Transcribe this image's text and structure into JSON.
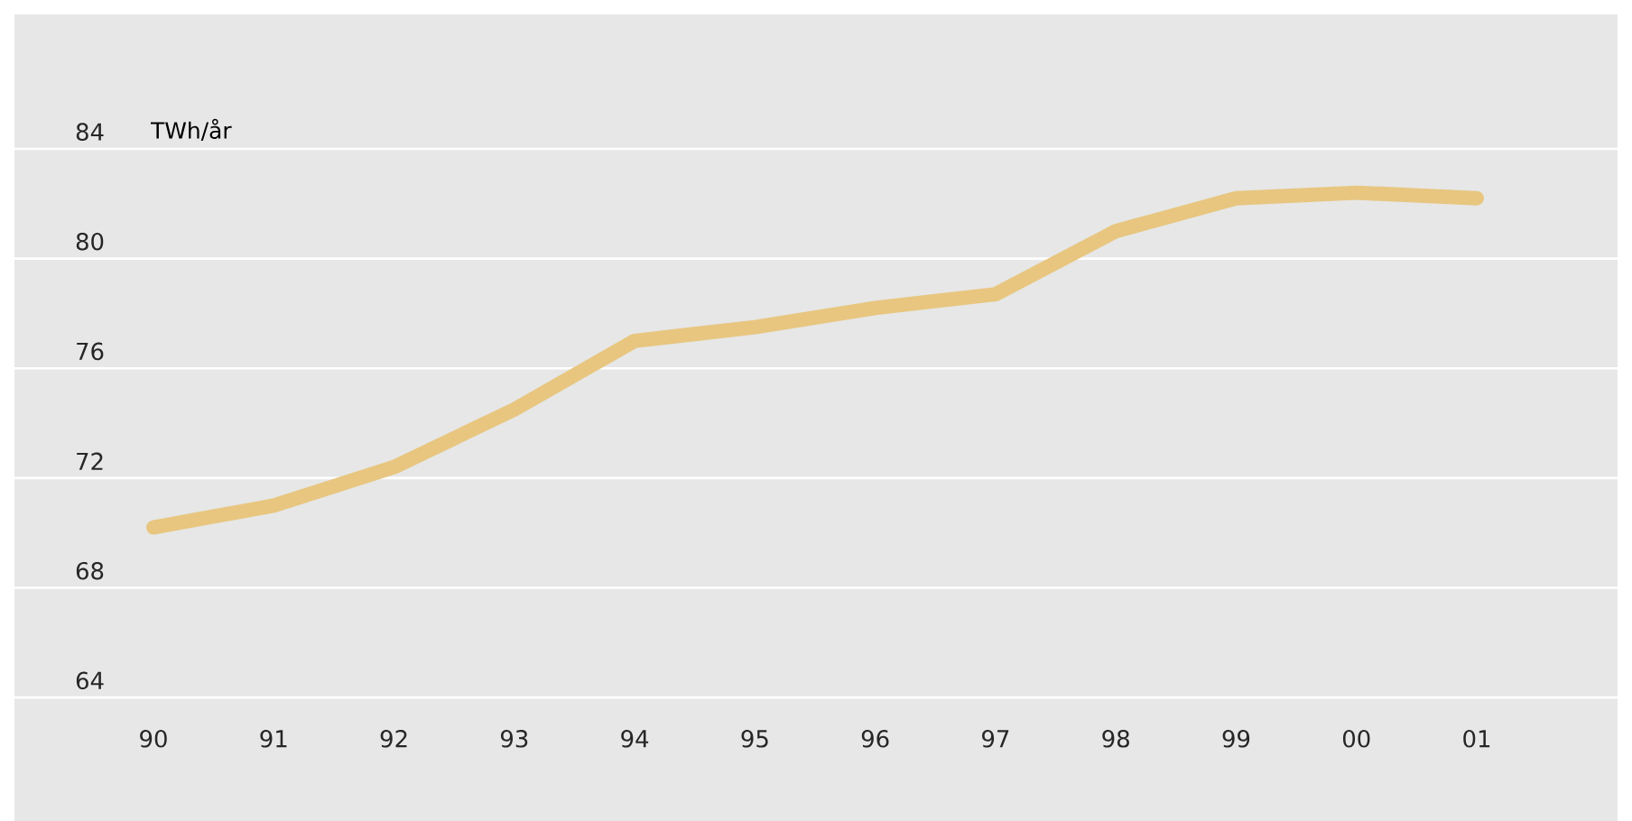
{
  "chart_data": {
    "type": "line",
    "ylabel": "TWh/år",
    "categories": [
      "90",
      "91",
      "92",
      "93",
      "94",
      "95",
      "96",
      "97",
      "98",
      "99",
      "00",
      "01"
    ],
    "values": [
      70.2,
      71.0,
      72.4,
      74.5,
      77.0,
      77.5,
      78.2,
      78.7,
      81.0,
      82.2,
      82.4,
      82.2
    ],
    "color": "#e8c680",
    "ylim": [
      59.5,
      88.9
    ],
    "yticks": [
      64,
      68,
      72,
      76,
      80,
      84
    ],
    "grid": "y"
  }
}
